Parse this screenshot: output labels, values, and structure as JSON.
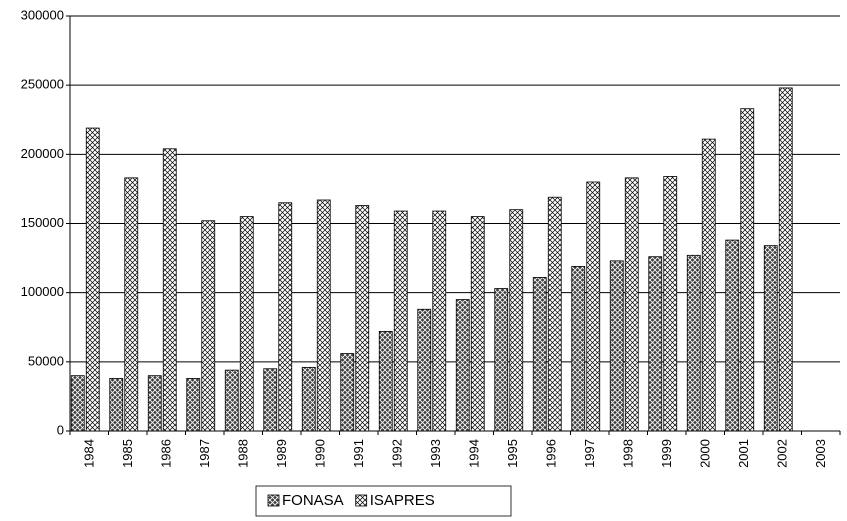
{
  "chart_data": {
    "type": "bar",
    "categories": [
      "1984",
      "1985",
      "1986",
      "1987",
      "1988",
      "1989",
      "1990",
      "1991",
      "1992",
      "1993",
      "1994",
      "1995",
      "1996",
      "1997",
      "1998",
      "1999",
      "2000",
      "2001",
      "2002",
      "2003"
    ],
    "series": [
      {
        "name": "FONASA",
        "color": "#404040",
        "values": [
          40000,
          38000,
          40000,
          38000,
          44000,
          45000,
          46000,
          56000,
          72000,
          88000,
          95000,
          103000,
          111000,
          119000,
          123000,
          126000,
          127000,
          138000,
          134000,
          null
        ]
      },
      {
        "name": "ISAPRES",
        "color": "#ffffff",
        "values": [
          219000,
          183000,
          204000,
          152000,
          155000,
          165000,
          167000,
          163000,
          159000,
          159000,
          155000,
          160000,
          169000,
          180000,
          183000,
          184000,
          211000,
          233000,
          248000,
          null
        ]
      }
    ],
    "ylim": [
      0,
      300000
    ],
    "yticks": [
      0,
      50000,
      100000,
      150000,
      200000,
      250000,
      300000
    ],
    "grid": true,
    "legend": "bottom"
  }
}
